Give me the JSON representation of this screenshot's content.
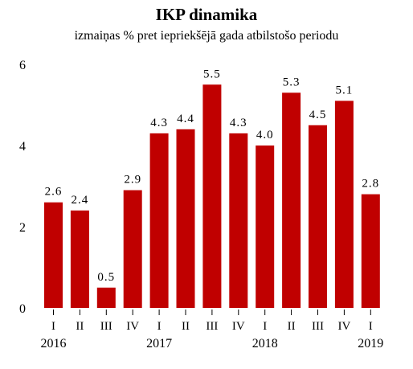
{
  "chart_data": {
    "type": "bar",
    "title": "IKP dinamika",
    "subtitle": "izmaiņas % pret iepriekšējā gada atbilstošo periodu",
    "categories": [
      "I",
      "II",
      "III",
      "IV",
      "I",
      "II",
      "III",
      "IV",
      "I",
      "II",
      "III",
      "IV",
      "I"
    ],
    "years": [
      {
        "label": "2016",
        "start": 0
      },
      {
        "label": "2017",
        "start": 4
      },
      {
        "label": "2018",
        "start": 8
      },
      {
        "label": "2019",
        "start": 12
      }
    ],
    "values": [
      2.6,
      2.4,
      0.5,
      2.9,
      4.3,
      4.4,
      5.5,
      4.3,
      4.0,
      5.3,
      4.5,
      5.1,
      2.8
    ],
    "value_labels": [
      "2.6",
      "2.4",
      "0.5",
      "2.9",
      "4.3",
      "4.4",
      "5.5",
      "4.3",
      "4.0",
      "5.3",
      "4.5",
      "5.1",
      "2.8"
    ],
    "yticks": [
      "0",
      "2",
      "4",
      "6"
    ],
    "ylim": [
      0,
      6
    ],
    "xlabel": "",
    "ylabel": "",
    "grid": false,
    "bar_color": "#c00000"
  }
}
